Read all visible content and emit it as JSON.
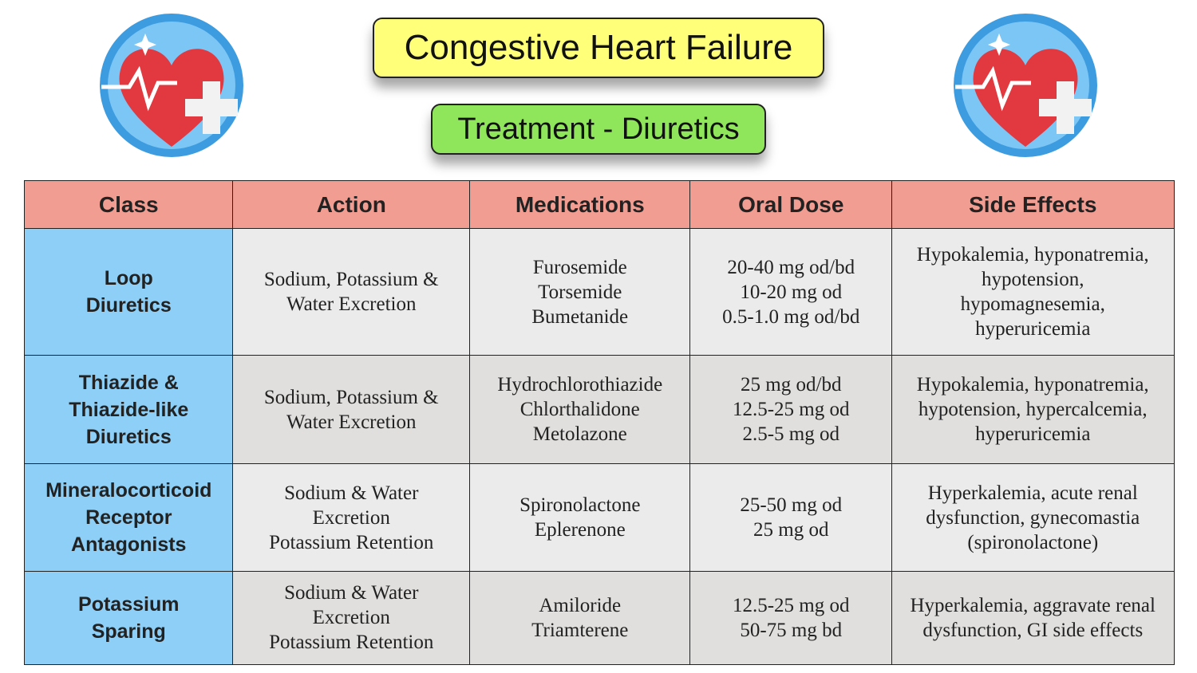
{
  "header": {
    "title": "Congestive Heart Failure",
    "subtitle": "Treatment - Diuretics"
  },
  "table": {
    "columns": [
      "Class",
      "Action",
      "Medications",
      "Oral Dose",
      "Side Effects"
    ],
    "rows": [
      [
        [
          "Loop",
          "Diuretics"
        ],
        [
          "Sodium, Potassium &",
          "Water Excretion"
        ],
        [
          "Furosemide",
          "Torsemide",
          "Bumetanide"
        ],
        [
          "20-40 mg od/bd",
          "10-20 mg od",
          "0.5-1.0 mg od/bd"
        ],
        [
          "Hypokalemia, hyponatremia,",
          "hypotension,",
          "hypomagnesemia,",
          "hyperuricemia"
        ]
      ],
      [
        [
          "Thiazide &",
          "Thiazide-like",
          "Diuretics"
        ],
        [
          "Sodium, Potassium &",
          "Water Excretion"
        ],
        [
          "Hydrochlorothiazide",
          "Chlorthalidone",
          "Metolazone"
        ],
        [
          "25 mg od/bd",
          "12.5-25 mg od",
          "2.5-5 mg od"
        ],
        [
          "Hypokalemia, hyponatremia,",
          "hypotension, hypercalcemia,",
          "hyperuricemia"
        ]
      ],
      [
        [
          "Mineralocorticoid",
          "Receptor",
          "Antagonists"
        ],
        [
          "Sodium & Water",
          "Excretion",
          "Potassium Retention"
        ],
        [
          "Spironolactone",
          "Eplerenone"
        ],
        [
          "25-50 mg od",
          "25 mg od"
        ],
        [
          "Hyperkalemia, acute renal",
          "dysfunction, gynecomastia",
          "(spironolactone)"
        ]
      ],
      [
        [
          "Potassium",
          "Sparing"
        ],
        [
          "Sodium & Water",
          "Excretion",
          "Potassium Retention"
        ],
        [
          "Amiloride",
          "Triamterene"
        ],
        [
          "12.5-25 mg od",
          "50-75 mg bd"
        ],
        [
          "Hyperkalemia, aggravate renal",
          "dysfunction, GI side effects"
        ]
      ]
    ]
  }
}
